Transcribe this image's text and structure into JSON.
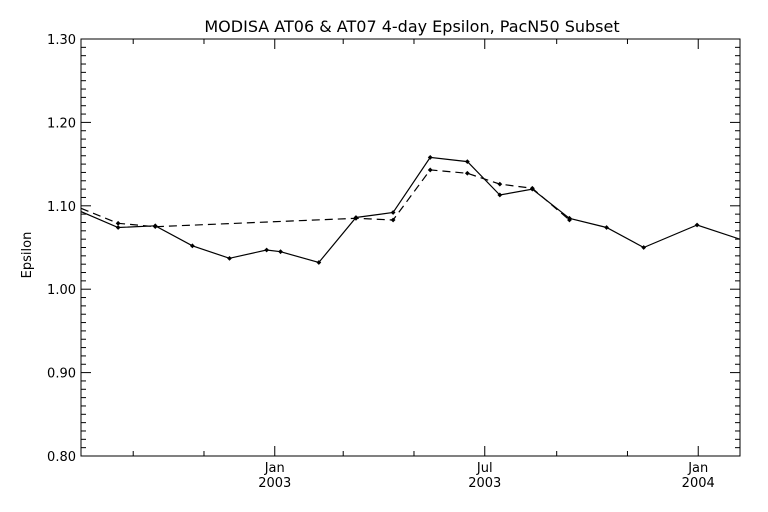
{
  "chart_data": {
    "type": "line",
    "title": "MODISA AT06 & AT07 4-day Epsilon, PacN50 Subset",
    "ylabel": "Epsilon",
    "xlabel": "",
    "ylim": [
      0.8,
      1.3
    ],
    "y_ticks": [
      "0.80",
      "0.90",
      "1.00",
      "1.10",
      "1.20",
      "1.30"
    ],
    "xlim": [
      "2002-07-18",
      "2004-02-06"
    ],
    "x_ticks": [
      {
        "line1": "Jan",
        "line2": "2003",
        "date": "2003-01-01"
      },
      {
        "line1": "Jul",
        "line2": "2003",
        "date": "2003-07-01"
      },
      {
        "line1": "Jan",
        "line2": "2004",
        "date": "2004-01-01"
      }
    ],
    "grid": false,
    "legend": "none",
    "series": [
      {
        "style": "solid",
        "color": "#000000",
        "x": [
          "2002-07-18",
          "2002-08-19",
          "2002-09-20",
          "2002-10-22",
          "2002-11-23",
          "2002-12-25",
          "2003-01-06",
          "2003-02-08",
          "2003-03-12",
          "2003-04-13",
          "2003-05-15",
          "2003-06-16",
          "2003-07-14",
          "2003-08-11",
          "2003-09-12",
          "2003-10-14",
          "2003-11-15",
          "2003-12-31",
          "2004-02-06"
        ],
        "values": [
          1.093,
          1.074,
          1.076,
          1.052,
          1.037,
          1.047,
          1.045,
          1.032,
          1.086,
          1.092,
          1.158,
          1.153,
          1.113,
          1.12,
          1.085,
          1.074,
          1.05,
          1.077,
          1.06
        ]
      },
      {
        "style": "dashed",
        "color": "#000000",
        "x": [
          "2002-07-18",
          "2002-08-19",
          "2002-09-20",
          "2003-03-12",
          "2003-04-13",
          "2003-05-15",
          "2003-06-16",
          "2003-07-14",
          "2003-08-11",
          "2003-09-12"
        ],
        "values": [
          1.097,
          1.079,
          1.075,
          1.085,
          1.083,
          1.143,
          1.139,
          1.126,
          1.121,
          1.083
        ]
      }
    ]
  }
}
